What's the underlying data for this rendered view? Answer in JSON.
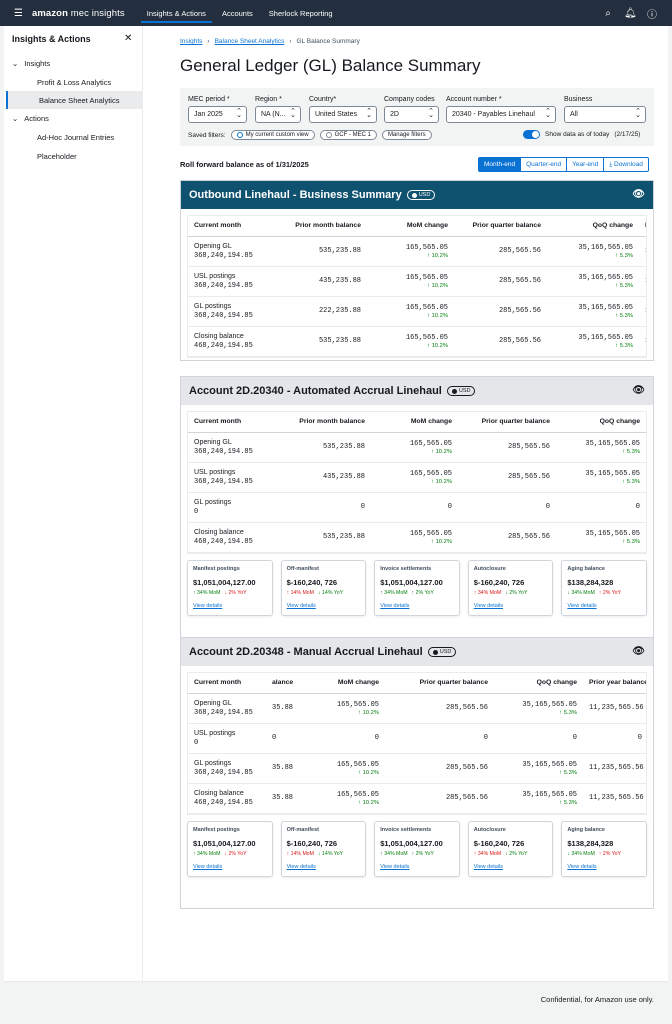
{
  "topbar": {
    "brand_1": "amazon",
    "brand_2": " mec insights",
    "nav": [
      "Insights & Actions",
      "Accounts",
      "Sherlock Reporting"
    ]
  },
  "sidebar": {
    "title": "Insights & Actions",
    "section_insights": "Insights",
    "item_pl": "Profit & Loss Analytics",
    "item_bs": "Balance Sheet Analytics",
    "section_actions": "Actions",
    "item_adhoc": "Ad-Hoc Journal Entries",
    "item_placeholder": "Placeholder"
  },
  "breadcrumb": [
    "Insights",
    "Balance Sheet Analytics",
    "GL Balance Summary"
  ],
  "page_title": "General Ledger (GL) Balance Summary",
  "filters": {
    "mec_period": {
      "label": "MEC period *",
      "value": "Jan 2025"
    },
    "region": {
      "label": "Region *",
      "value": "NA (N..."
    },
    "country": {
      "label": "Country*",
      "value": "United States"
    },
    "company": {
      "label": "Company codes",
      "value": "2D"
    },
    "account": {
      "label": "Account number *",
      "value": "20340 - Payables Linehaul"
    },
    "business": {
      "label": "Business",
      "value": "All"
    },
    "saved_label": "Saved filters:",
    "saved_1": "My current custom view",
    "saved_2": "GCF - MEC 1",
    "manage": "Manage filters",
    "toggle_label": "Show data as of today",
    "toggle_date": "(2/17/25)"
  },
  "rollforward": "Roll forward balance as of 1/31/2025",
  "segments": [
    "Month-end",
    "Quarter-end",
    "Year-end"
  ],
  "download": "Download",
  "badge": "USD",
  "accent_color": "#0972d3",
  "sections": {
    "s1": {
      "title": "Outbound Linehaul - Business Summary",
      "headers": [
        "Current month",
        "Prior month balance",
        "MoM change",
        "Prior quarter balance",
        "QoQ change",
        "Pri"
      ],
      "rows": [
        {
          "label": "Opening GL",
          "value": "368,240,194.85",
          "prior": "535,235.88",
          "mom": "165,565.05",
          "mom_pct": "10.2%",
          "pq": "285,565.56",
          "qoq": "35,165,565.05",
          "qoq_pct": "5.3%",
          "cut": "11"
        },
        {
          "label": "USL postings",
          "value": "368,240,194.85",
          "prior": "435,235.88",
          "mom": "165,565.05",
          "mom_pct": "10.2%",
          "pq": "285,565.56",
          "qoq": "35,165,565.05",
          "qoq_pct": "5.3%",
          "cut": "11"
        },
        {
          "label": "GL postings",
          "value": "368,240,194.85",
          "prior": "222,235.88",
          "mom": "165,565.05",
          "mom_pct": "10.2%",
          "pq": "285,565.56",
          "qoq": "35,165,565.05",
          "qoq_pct": "5.3%",
          "cut": "11"
        },
        {
          "label": "Closing balance",
          "value": "468,240,194.85",
          "prior": "535,235.88",
          "mom": "165,565.05",
          "mom_pct": "10.2%",
          "pq": "285,565.56",
          "qoq": "35,165,565.05",
          "qoq_pct": "5.3%",
          "cut": "11"
        }
      ]
    },
    "s2": {
      "title": "Account 2D.20340 - Automated Accrual Linehaul",
      "headers": [
        "Current month",
        "Prior month balance",
        "MoM change",
        "Prior quarter balance",
        "QoQ change",
        "P"
      ],
      "rows": [
        {
          "label": "Opening GL",
          "value": "368,240,194.85",
          "prior": "535,235.88",
          "mom": "165,565.05",
          "mom_pct": "10.2%",
          "pq": "285,565.56",
          "qoq": "35,165,565.05",
          "qoq_pct": "5.3%",
          "cut": "1"
        },
        {
          "label": "USL postings",
          "value": "368,240,194.85",
          "prior": "435,235.88",
          "mom": "165,565.05",
          "mom_pct": "10.2%",
          "pq": "285,565.56",
          "qoq": "35,165,565.05",
          "qoq_pct": "5.3%",
          "cut": "1"
        },
        {
          "label": "GL postings",
          "value": "0",
          "prior": "0",
          "mom": "0",
          "mom_pct": "",
          "pq": "0",
          "qoq": "0",
          "qoq_pct": "",
          "cut": ""
        },
        {
          "label": "Closing balance",
          "value": "468,240,194.85",
          "prior": "535,235.88",
          "mom": "165,565.05",
          "mom_pct": "10.2%",
          "pq": "285,565.56",
          "qoq": "35,165,565.05",
          "qoq_pct": "5.3%",
          "cut": "1"
        }
      ]
    },
    "s3": {
      "title": "Account 2D.20348 - Manual Accrual Linehaul",
      "headers": [
        "Current month",
        "alance",
        "MoM change",
        "Prior quarter balance",
        "QoQ change",
        "Prior year balance"
      ],
      "rows": [
        {
          "label": "Opening GL",
          "value": "368,240,194.85",
          "prior": "35.88",
          "mom": "165,565.05",
          "mom_pct": "10.2%",
          "pq": "285,565.56",
          "qoq": "35,165,565.05",
          "qoq_pct": "5.3%",
          "py": "11,235,565.56"
        },
        {
          "label": "USL postings",
          "value": "0",
          "prior": "0",
          "mom": "0",
          "mom_pct": "",
          "pq": "0",
          "qoq": "0",
          "qoq_pct": "",
          "py": "0"
        },
        {
          "label": "GL postings",
          "value": "368,240,194.85",
          "prior": "35.88",
          "mom": "165,565.05",
          "mom_pct": "10.2%",
          "pq": "285,565.56",
          "qoq": "35,165,565.05",
          "qoq_pct": "5.3%",
          "py": "11,235,565.56"
        },
        {
          "label": "Closing balance",
          "value": "468,240,194.85",
          "prior": "35.88",
          "mom": "165,565.05",
          "mom_pct": "10.2%",
          "pq": "285,565.56",
          "qoq": "35,165,565.05",
          "qoq_pct": "5.3%",
          "py": "11,235,565.56"
        }
      ]
    }
  },
  "cards": [
    {
      "title": "Manifest postings",
      "value": "$1,051,004,127.00",
      "mom": "34% MoM",
      "mom_dir": "up",
      "yoy": "2% YoY",
      "yoy_dir": "down",
      "link": "View details"
    },
    {
      "title": "Off-manifest",
      "value": "$-160,240, 726",
      "mom": "14% MoM",
      "mom_dir": "up",
      "yoy": "14% YoY",
      "yoy_dir": "down",
      "link": "View details"
    },
    {
      "title": "Invoice settlements",
      "value": "$1,051,004,127.00",
      "mom": "34% MoM",
      "mom_dir": "up",
      "yoy": "2% YoY",
      "yoy_dir": "up",
      "link": "View details"
    },
    {
      "title": "Autoclosure",
      "value": "$-160,240, 726",
      "mom": "34% MoM",
      "mom_dir": "up",
      "yoy": "2% YoY",
      "yoy_dir": "down",
      "link": "View details"
    },
    {
      "title": "Aging balance",
      "value": "$138,284,328",
      "mom": "34% MoM",
      "mom_dir": "down",
      "yoy": "2% YoY",
      "yoy_dir": "up",
      "link": "View details"
    }
  ],
  "footer": "Confidential, for Amazon use only."
}
